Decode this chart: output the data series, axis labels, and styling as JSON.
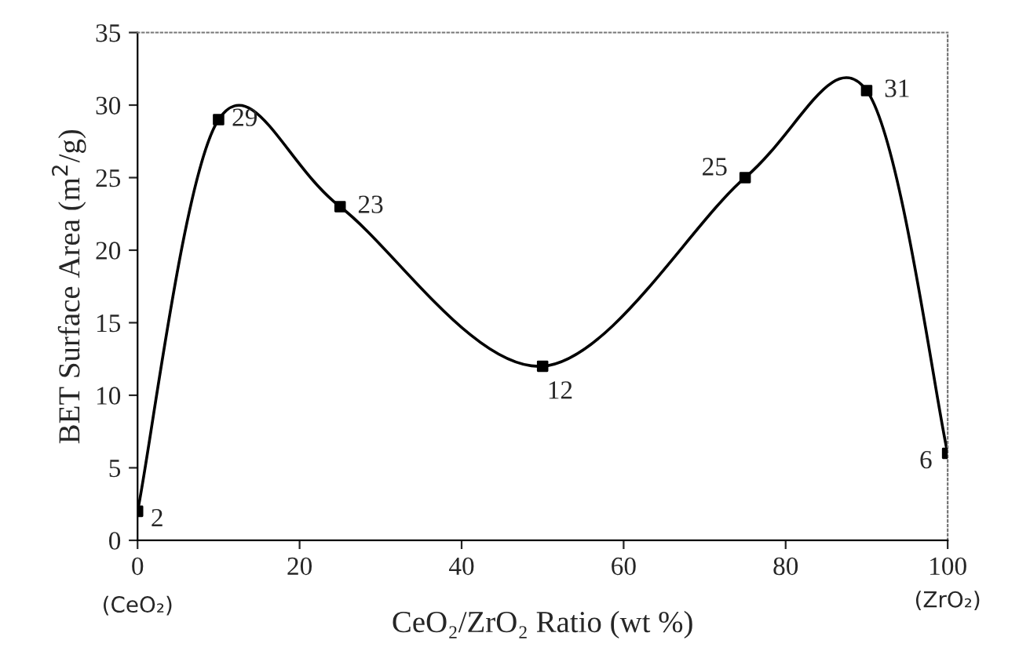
{
  "chart_data": {
    "type": "line",
    "x": [
      0,
      10,
      25,
      50,
      75,
      90,
      100
    ],
    "series": [
      {
        "color": "#000000",
        "values": [
          2,
          29,
          23,
          12,
          25,
          31,
          6
        ]
      }
    ],
    "xlabel": "CeO₂/ZrO₂ Ratio (wt %)",
    "ylabel": "BET Surface Area (m$^{2}$/g)",
    "xlim": [
      0,
      100
    ],
    "xticks": [
      0,
      20,
      40,
      60,
      80,
      100
    ],
    "ylim": [
      0,
      35
    ],
    "yticks": [
      0,
      5,
      10,
      15,
      20,
      25,
      30,
      35
    ],
    "annotations": [
      "(CeO₂)",
      "(ZrO₂)"
    ],
    "data_labels": true,
    "marker": "square",
    "line_style": "solid",
    "grid": false,
    "legend": false
  }
}
